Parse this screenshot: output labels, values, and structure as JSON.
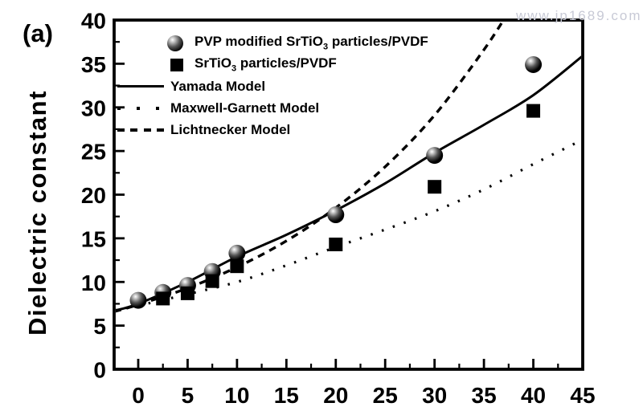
{
  "figure": {
    "panel_label": "(a)",
    "watermark": "www.jp1689.com",
    "background_color": "#ffffff",
    "ink_color": "#000000",
    "watermark_color": "#c8cad6"
  },
  "legend": {
    "items": [
      {
        "marker": "sphere-marker",
        "pre": "PVP modified SrTiO",
        "sub": "3",
        "post": " particles/PVDF"
      },
      {
        "marker": "square-marker",
        "pre": "SrTiO",
        "sub": "3",
        "post": " particles/PVDF"
      },
      {
        "marker": "solid-line",
        "label": "Yamada Model"
      },
      {
        "marker": "dotted-line",
        "label": "Maxwell-Garnett Model"
      },
      {
        "marker": "dashed-line",
        "label": "Lichtnecker Model"
      }
    ]
  },
  "chart_data": {
    "type": "scatter",
    "title": "",
    "xlabel": "",
    "ylabel": "Dielectric constant",
    "xlim": [
      -2.44,
      45
    ],
    "ylim": [
      0,
      40
    ],
    "x_ticks": [
      0,
      5,
      10,
      15,
      20,
      25,
      30,
      35,
      40,
      45
    ],
    "y_ticks": [
      0,
      5,
      10,
      15,
      20,
      25,
      30,
      35,
      40
    ],
    "minor_tick_interval": 2.5,
    "grid": false,
    "legend_position": "top-left-inside",
    "series": [
      {
        "name": "PVP modified SrTiO3 particles/PVDF",
        "kind": "scatter",
        "marker": "sphere",
        "x": [
          0,
          2.5,
          5,
          7.5,
          10,
          20,
          30,
          40
        ],
        "y": [
          7.9,
          8.8,
          9.6,
          11.2,
          13.3,
          17.7,
          24.5,
          34.9
        ]
      },
      {
        "name": "SrTiO3 particles/PVDF",
        "kind": "scatter",
        "marker": "square",
        "x": [
          2.5,
          5,
          7.5,
          10,
          20,
          30,
          40
        ],
        "y": [
          8.1,
          8.7,
          10.1,
          11.8,
          14.3,
          20.9,
          29.6
        ]
      },
      {
        "name": "Yamada Model",
        "kind": "line",
        "style": "solid",
        "x": [
          -2.44,
          0,
          5,
          10,
          15,
          20,
          25,
          30,
          35,
          40,
          45
        ],
        "y": [
          6.7,
          7.5,
          10.0,
          12.9,
          15.4,
          18.2,
          21.3,
          24.8,
          28.0,
          31.4,
          35.9
        ]
      },
      {
        "name": "Maxwell-Garnett Model",
        "kind": "line",
        "style": "dotted",
        "x": [
          -2.44,
          0,
          5,
          10,
          15,
          20,
          25,
          30,
          35,
          40,
          45
        ],
        "y": [
          6.8,
          7.3,
          8.6,
          10.0,
          11.9,
          14.0,
          16.0,
          18.1,
          20.6,
          23.5,
          26.3
        ]
      },
      {
        "name": "Lichtnecker Model",
        "kind": "line",
        "style": "dashed",
        "x": [
          -2.44,
          0,
          5,
          10,
          15,
          20,
          25,
          30,
          35,
          37.8
        ],
        "y": [
          6.6,
          7.4,
          9.3,
          11.7,
          14.7,
          18.5,
          23.2,
          29.1,
          36.6,
          41.5
        ]
      }
    ]
  }
}
